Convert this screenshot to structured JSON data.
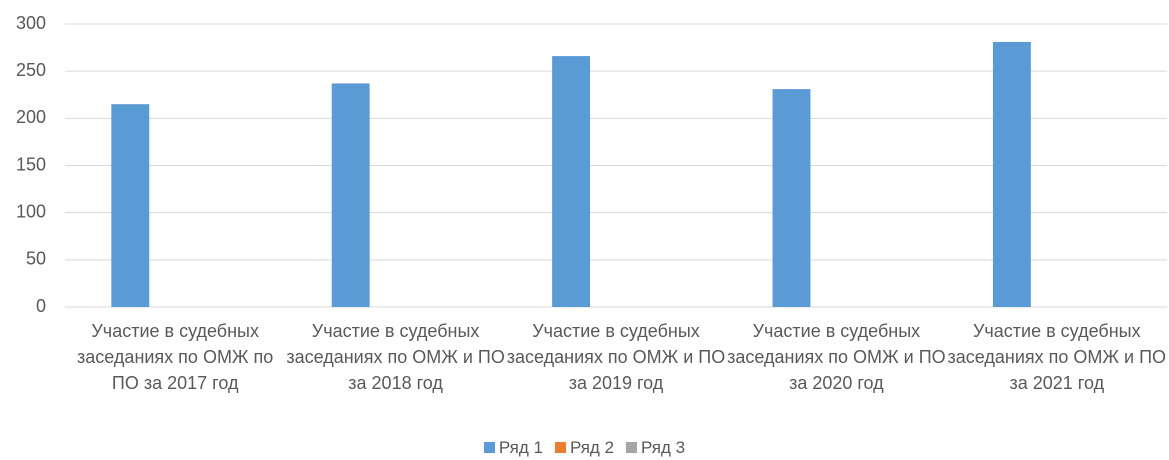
{
  "chart_data": {
    "type": "bar",
    "categories": [
      "Участие в судебных заседаниях по ОМЖ по ПО за 2017 год",
      "Участие в судебных заседаниях по ОМЖ и ПО за 2018 год",
      "Участие в судебных заседаниях по ОМЖ и ПО за 2019 год",
      "Участие в судебных заседаниях по ОМЖ и ПО за 2020 год",
      "Участие в судебных заседаниях по ОМЖ и ПО за 2021 год"
    ],
    "series": [
      {
        "name": "Ряд 1",
        "color": "#5b9bd5",
        "values": [
          215,
          237,
          266,
          231,
          281
        ]
      },
      {
        "name": "Ряд 2",
        "color": "#ed7d31",
        "values": [
          null,
          null,
          null,
          null,
          null
        ]
      },
      {
        "name": "Ряд 3",
        "color": "#a5a5a5",
        "values": [
          null,
          null,
          null,
          null,
          null
        ]
      }
    ],
    "ylim": [
      0,
      300
    ],
    "yticks": [
      0,
      50,
      100,
      150,
      200,
      250,
      300
    ],
    "grid": true,
    "legend": "bottom"
  }
}
